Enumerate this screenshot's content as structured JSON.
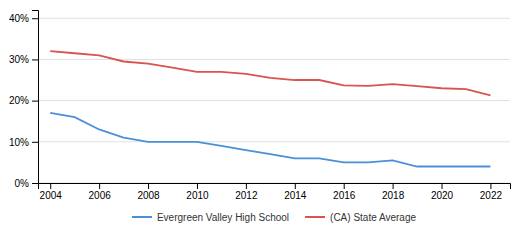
{
  "chart_data": {
    "type": "line",
    "x": [
      2004,
      2005,
      2006,
      2007,
      2008,
      2009,
      2010,
      2011,
      2012,
      2013,
      2014,
      2015,
      2016,
      2017,
      2018,
      2019,
      2020,
      2021,
      2022
    ],
    "series": [
      {
        "name": "Evergreen Valley High School",
        "color": "#4a90d9",
        "values": [
          0.17,
          0.16,
          0.13,
          0.11,
          0.1,
          0.1,
          0.1,
          0.09,
          0.08,
          0.07,
          0.06,
          0.06,
          0.05,
          0.05,
          0.055,
          0.04,
          0.04,
          0.04,
          0.04
        ]
      },
      {
        "name": "(CA) State Average",
        "color": "#d9534f",
        "values": [
          0.32,
          0.315,
          0.31,
          0.295,
          0.29,
          0.28,
          0.27,
          0.27,
          0.265,
          0.255,
          0.25,
          0.25,
          0.237,
          0.236,
          0.24,
          0.235,
          0.23,
          0.228,
          0.213
        ]
      }
    ],
    "xlim": [
      2003.5,
      2022.8
    ],
    "xticks": [
      2004,
      2006,
      2008,
      2010,
      2012,
      2014,
      2016,
      2018,
      2020,
      2022
    ],
    "ylim": [
      0.0,
      0.42
    ],
    "yticks": [
      {
        "value": 0.0,
        "label": "0%"
      },
      {
        "value": 0.1,
        "label": "10%"
      },
      {
        "value": 0.2,
        "label": "20%"
      },
      {
        "value": 0.3,
        "label": "30%"
      },
      {
        "value": 0.4,
        "label": "40%"
      }
    ],
    "grid": "y",
    "legend": "bottom"
  }
}
